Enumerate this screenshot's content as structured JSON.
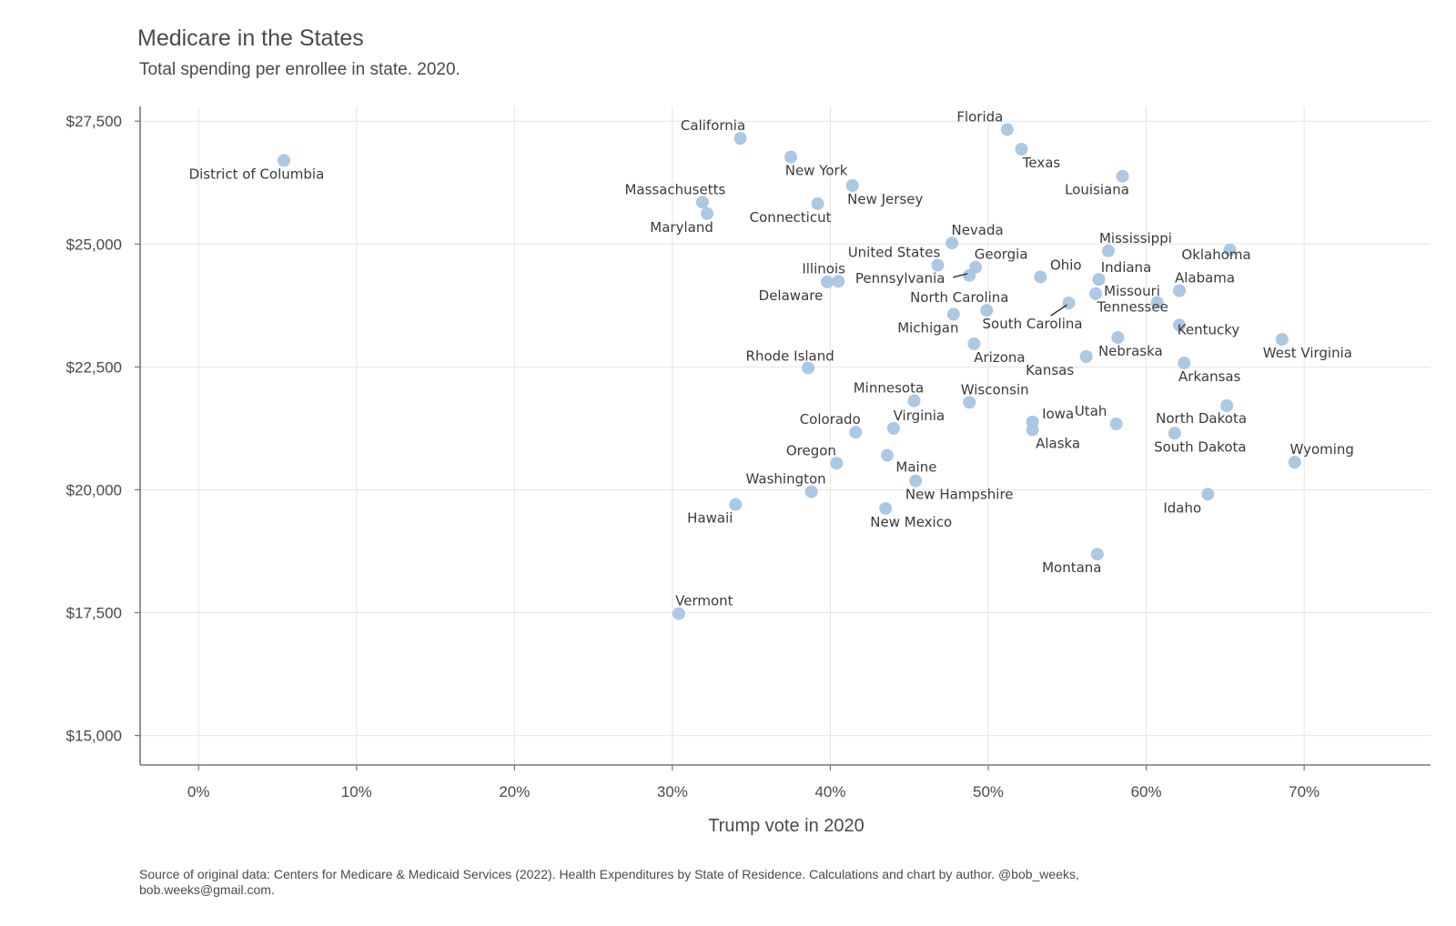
{
  "chart_data": {
    "type": "scatter",
    "title": "Medicare in the States",
    "subtitle": "Total spending per enrollee in state. 2020.",
    "xlabel": "Trump vote in 2020",
    "ylabel": "",
    "xlim": [
      -0.037,
      0.78
    ],
    "ylim": [
      14400,
      27800
    ],
    "x_ticks": [
      0,
      0.1,
      0.2,
      0.3,
      0.4,
      0.5,
      0.6,
      0.7
    ],
    "x_tick_labels": [
      "0%",
      "10%",
      "20%",
      "30%",
      "40%",
      "50%",
      "60%",
      "70%"
    ],
    "y_ticks": [
      15000,
      17500,
      20000,
      22500,
      25000,
      27500
    ],
    "y_tick_labels": [
      "$15,000",
      "$17,500",
      "$20,000",
      "$22,500",
      "$25,000",
      "$27,500"
    ],
    "grid": true,
    "point_color": "#a7c5e3",
    "points": [
      {
        "label": "District of Columbia",
        "x": 0.054,
        "y": 26700
      },
      {
        "label": "California",
        "x": 0.343,
        "y": 27150
      },
      {
        "label": "New York",
        "x": 0.375,
        "y": 26770
      },
      {
        "label": "Massachusetts",
        "x": 0.319,
        "y": 25850
      },
      {
        "label": "Maryland",
        "x": 0.322,
        "y": 25620
      },
      {
        "label": "Connecticut",
        "x": 0.392,
        "y": 25820
      },
      {
        "label": "New Jersey",
        "x": 0.414,
        "y": 26190
      },
      {
        "label": "Florida",
        "x": 0.512,
        "y": 27330
      },
      {
        "label": "Texas",
        "x": 0.521,
        "y": 26930
      },
      {
        "label": "Louisiana",
        "x": 0.585,
        "y": 26380
      },
      {
        "label": "Nevada",
        "x": 0.477,
        "y": 25020
      },
      {
        "label": "Mississippi",
        "x": 0.576,
        "y": 24860
      },
      {
        "label": "Oklahoma",
        "x": 0.653,
        "y": 24880
      },
      {
        "label": "United States",
        "x": 0.468,
        "y": 24570
      },
      {
        "label": "Georgia",
        "x": 0.492,
        "y": 24530
      },
      {
        "label": "Pennsylvania",
        "x": 0.488,
        "y": 24360
      },
      {
        "label": "Ohio",
        "x": 0.533,
        "y": 24330
      },
      {
        "label": "Indiana",
        "x": 0.57,
        "y": 24280
      },
      {
        "label": "Alabama",
        "x": 0.621,
        "y": 24050
      },
      {
        "label": "Illinois",
        "x": 0.405,
        "y": 24240
      },
      {
        "label": "Delaware",
        "x": 0.398,
        "y": 24230
      },
      {
        "label": "Missouri",
        "x": 0.568,
        "y": 23990
      },
      {
        "label": "North Carolina",
        "x": 0.499,
        "y": 23650
      },
      {
        "label": "South Carolina",
        "x": 0.551,
        "y": 23800
      },
      {
        "label": "Tennessee",
        "x": 0.607,
        "y": 23810
      },
      {
        "label": "Michigan",
        "x": 0.478,
        "y": 23570
      },
      {
        "label": "Kentucky",
        "x": 0.621,
        "y": 23350
      },
      {
        "label": "Nebraska",
        "x": 0.582,
        "y": 23100
      },
      {
        "label": "West Virginia",
        "x": 0.686,
        "y": 23060
      },
      {
        "label": "Arizona",
        "x": 0.491,
        "y": 22970
      },
      {
        "label": "Kansas",
        "x": 0.562,
        "y": 22710
      },
      {
        "label": "Arkansas",
        "x": 0.624,
        "y": 22580
      },
      {
        "label": "Rhode Island",
        "x": 0.386,
        "y": 22480
      },
      {
        "label": "Minnesota",
        "x": 0.453,
        "y": 21810
      },
      {
        "label": "Wisconsin",
        "x": 0.488,
        "y": 21780
      },
      {
        "label": "Iowa",
        "x": 0.528,
        "y": 21380
      },
      {
        "label": "Alaska",
        "x": 0.528,
        "y": 21220
      },
      {
        "label": "Utah",
        "x": 0.581,
        "y": 21340
      },
      {
        "label": "North Dakota",
        "x": 0.651,
        "y": 21710
      },
      {
        "label": "South Dakota",
        "x": 0.618,
        "y": 21150
      },
      {
        "label": "Colorado",
        "x": 0.416,
        "y": 21170
      },
      {
        "label": "Virginia",
        "x": 0.44,
        "y": 21250
      },
      {
        "label": "Oregon",
        "x": 0.404,
        "y": 20540
      },
      {
        "label": "Maine",
        "x": 0.436,
        "y": 20700
      },
      {
        "label": "Wyoming",
        "x": 0.694,
        "y": 20560
      },
      {
        "label": "Washington",
        "x": 0.388,
        "y": 19960
      },
      {
        "label": "New Hampshire",
        "x": 0.454,
        "y": 20180
      },
      {
        "label": "Idaho",
        "x": 0.639,
        "y": 19910
      },
      {
        "label": "Hawaii",
        "x": 0.34,
        "y": 19700
      },
      {
        "label": "New Mexico",
        "x": 0.435,
        "y": 19620
      },
      {
        "label": "Montana",
        "x": 0.569,
        "y": 18690
      },
      {
        "label": "Vermont",
        "x": 0.304,
        "y": 17480
      }
    ]
  },
  "caption": "Source of original data: Centers for Medicare & Medicaid Services (2022). Health Expenditures by State of Residence. Calculations and chart by author. @bob_weeks, bob.weeks@gmail.com."
}
